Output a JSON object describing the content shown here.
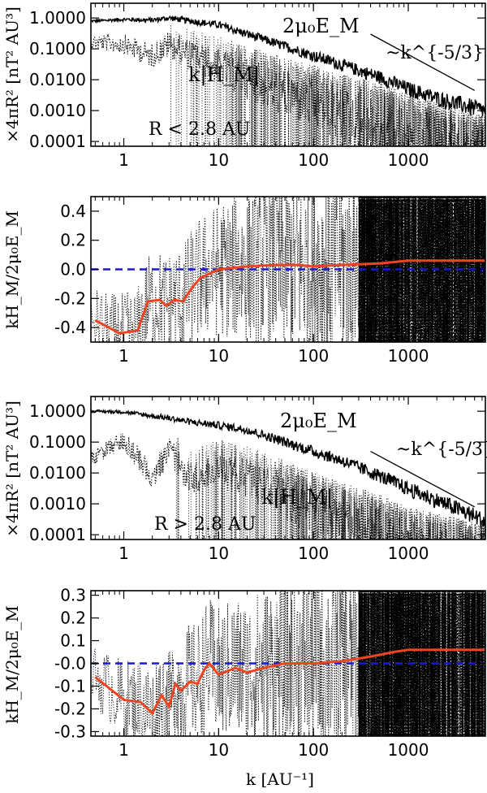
{
  "colors": {
    "axes": "#000000",
    "helicity_mean": "#ee4422",
    "zero_line": "#1a1acc"
  },
  "chart_data": [
    {
      "id": "p1",
      "type": "line",
      "scale": "log-log",
      "xlim": [
        0.45,
        6500
      ],
      "ylim": [
        7e-05,
        3.0
      ],
      "xticks": [
        {
          "v": 1,
          "label": "1"
        },
        {
          "v": 10,
          "label": "10"
        },
        {
          "v": 100,
          "label": "100"
        },
        {
          "v": 1000,
          "label": "1000"
        }
      ],
      "yticks": [
        {
          "v": 1,
          "label": "1.0000"
        },
        {
          "v": 0.1,
          "label": "0.1000"
        },
        {
          "v": 0.01,
          "label": "0.0100"
        },
        {
          "v": 0.001,
          "label": "0.0010"
        },
        {
          "v": 0.0001,
          "label": "0.0001"
        }
      ],
      "ylabel": "×4πR² [nT² AU³]",
      "region_label": "R < 2.8 AU",
      "energy_label": "2μ₀E_M",
      "helicity_label": "k|H_M|",
      "slope_label": "~k^{-5/3}",
      "series": [
        {
          "name": "2μ₀E_M",
          "style": "solid",
          "x": [
            0.5,
            1,
            2,
            3,
            5,
            10,
            20,
            50,
            100,
            200,
            500,
            1000,
            2000,
            5000,
            6500
          ],
          "values": [
            0.8,
            0.9,
            0.85,
            1.0,
            0.8,
            0.6,
            0.3,
            0.12,
            0.06,
            0.03,
            0.012,
            0.005,
            0.0025,
            0.0012,
            0.001
          ]
        },
        {
          "name": "k|H_M|",
          "style": "dotted",
          "x": [
            0.5,
            1,
            2,
            3,
            5,
            10,
            20,
            50,
            100,
            200,
            500,
            1000,
            2000,
            5000,
            6500
          ],
          "values": [
            0.3,
            0.3,
            0.15,
            0.4,
            0.2,
            0.1,
            0.05,
            0.02,
            0.012,
            0.006,
            0.003,
            0.0015,
            0.0007,
            0.0003,
            0.0003
          ]
        }
      ],
      "reference_line": {
        "label": "~k^{-5/3}",
        "x": [
          400,
          5000
        ],
        "values": [
          0.3,
          0.0045
        ]
      }
    },
    {
      "id": "p2",
      "type": "line",
      "scale": "log-linear",
      "xlim": [
        0.45,
        6500
      ],
      "ylim": [
        -0.5,
        0.5
      ],
      "xticks": [
        {
          "v": 1,
          "label": "1"
        },
        {
          "v": 10,
          "label": "10"
        },
        {
          "v": 100,
          "label": "100"
        },
        {
          "v": 1000,
          "label": "1000"
        }
      ],
      "yticks": [
        {
          "v": 0.4,
          "label": "0.4"
        },
        {
          "v": 0.2,
          "label": "0.2"
        },
        {
          "v": 0.0,
          "label": "0.0"
        },
        {
          "v": -0.2,
          "label": "-0.2"
        },
        {
          "v": -0.4,
          "label": "-0.4"
        }
      ],
      "ylabel": "kH_M/2μ₀E_M",
      "series": [
        {
          "name": "kH_M/2μ₀E_M (smoothed)",
          "style": "solid",
          "x": [
            0.5,
            0.9,
            1.4,
            1.8,
            2.4,
            2.8,
            3.4,
            4.2,
            5.2,
            6.4,
            8,
            10,
            14,
            20,
            40,
            70,
            100,
            200,
            500,
            1000,
            3000,
            6500
          ],
          "values": [
            -0.35,
            -0.44,
            -0.42,
            -0.22,
            -0.21,
            -0.25,
            -0.21,
            -0.22,
            -0.13,
            -0.06,
            -0.03,
            0.0,
            0.01,
            0.02,
            0.03,
            0.03,
            0.02,
            0.03,
            0.04,
            0.06,
            0.06,
            0.06
          ]
        },
        {
          "name": "zero",
          "style": "dashed",
          "x": [
            0.45,
            6500
          ],
          "values": [
            0,
            0
          ]
        }
      ]
    },
    {
      "id": "p3",
      "type": "line",
      "scale": "log-log",
      "xlim": [
        0.45,
        6500
      ],
      "ylim": [
        7e-05,
        3.0
      ],
      "xticks": [
        {
          "v": 1,
          "label": "1"
        },
        {
          "v": 10,
          "label": "10"
        },
        {
          "v": 100,
          "label": "100"
        },
        {
          "v": 1000,
          "label": "1000"
        }
      ],
      "yticks": [
        {
          "v": 1,
          "label": "1.0000"
        },
        {
          "v": 0.1,
          "label": "0.1000"
        },
        {
          "v": 0.01,
          "label": "0.0100"
        },
        {
          "v": 0.001,
          "label": "0.0010"
        },
        {
          "v": 0.0001,
          "label": "0.0001"
        }
      ],
      "ylabel": "×4πR² [nT² AU³]",
      "region_label": "R > 2.8 AU",
      "energy_label": "2μ₀E_M",
      "helicity_label": "k|H_M|",
      "slope_label": "~k^{-5/3}",
      "series": [
        {
          "name": "2μ₀E_M",
          "style": "solid",
          "x": [
            0.5,
            1,
            2,
            3,
            5,
            10,
            20,
            50,
            100,
            200,
            500,
            1000,
            2000,
            5000,
            6500
          ],
          "values": [
            1.0,
            0.95,
            0.7,
            0.6,
            0.45,
            0.35,
            0.25,
            0.1,
            0.05,
            0.025,
            0.008,
            0.003,
            0.0013,
            0.0004,
            0.00025
          ]
        },
        {
          "name": "k|H_M|",
          "style": "dotted",
          "x": [
            0.5,
            1,
            2,
            3,
            5,
            10,
            20,
            50,
            100,
            200,
            500,
            1000,
            2000,
            5000,
            6500
          ],
          "values": [
            0.06,
            0.25,
            0.02,
            0.15,
            0.02,
            0.05,
            0.03,
            0.01,
            0.004,
            0.002,
            0.0008,
            0.0003,
            0.0002,
            0.0001,
            0.0001
          ]
        }
      ],
      "reference_line": {
        "label": "~k^{-5/3}",
        "x": [
          400,
          5000
        ],
        "values": [
          0.05,
          0.0008
        ]
      }
    },
    {
      "id": "p4",
      "type": "line",
      "scale": "log-linear",
      "xlim": [
        0.45,
        6500
      ],
      "ylim": [
        -0.32,
        0.32
      ],
      "xticks": [
        {
          "v": 1,
          "label": "1"
        },
        {
          "v": 10,
          "label": "10"
        },
        {
          "v": 100,
          "label": "100"
        },
        {
          "v": 1000,
          "label": "1000"
        }
      ],
      "yticks": [
        {
          "v": 0.3,
          "label": "0.3"
        },
        {
          "v": 0.2,
          "label": "0.2"
        },
        {
          "v": 0.1,
          "label": "0.1"
        },
        {
          "v": 0.0,
          "label": "-0.0"
        },
        {
          "v": -0.1,
          "label": "-0.1"
        },
        {
          "v": -0.2,
          "label": "-0.2"
        },
        {
          "v": -0.3,
          "label": "-0.3"
        }
      ],
      "ylabel": "kH_M/2μ₀E_M",
      "xlabel": "k [AU⁻¹]",
      "series": [
        {
          "name": "kH_M/2μ₀E_M (smoothed)",
          "style": "solid",
          "x": [
            0.5,
            1,
            1.5,
            2,
            2.5,
            3,
            3.5,
            4,
            5,
            6,
            7,
            8,
            10,
            15,
            20,
            30,
            50,
            100,
            200,
            400,
            700,
            1000,
            3000,
            6500
          ],
          "values": [
            -0.06,
            -0.16,
            -0.17,
            -0.22,
            -0.14,
            -0.19,
            -0.09,
            -0.12,
            -0.08,
            -0.09,
            -0.03,
            0.0,
            -0.05,
            -0.02,
            -0.04,
            -0.02,
            0.0,
            0.0,
            0.01,
            0.03,
            0.05,
            0.06,
            0.06,
            0.06
          ]
        },
        {
          "name": "zero",
          "style": "dashed",
          "x": [
            0.45,
            6500
          ],
          "values": [
            0,
            0
          ]
        }
      ]
    }
  ]
}
